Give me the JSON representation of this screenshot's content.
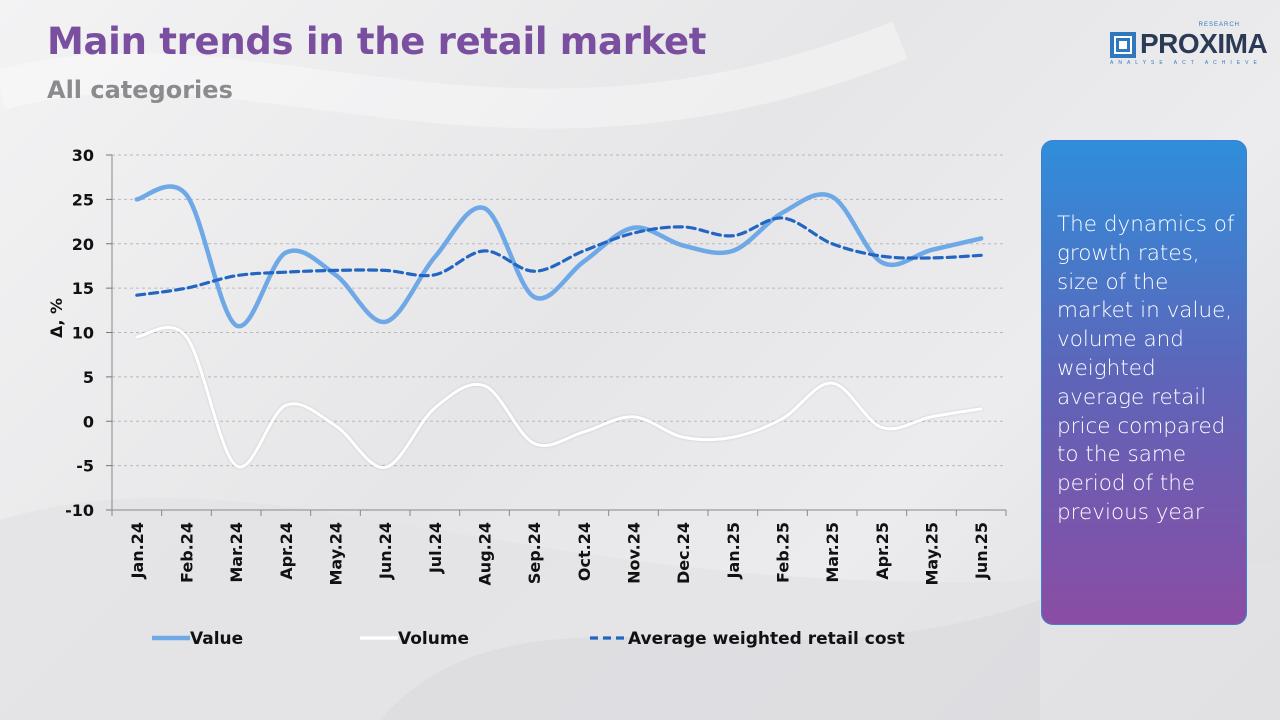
{
  "header": {
    "title": "Main trends in the retail market",
    "subtitle": "All categories"
  },
  "logo": {
    "word": "PROXIMA",
    "top_text": "RESEARCH",
    "tagline": "ANALYSE ACT ACHIEVE",
    "color": "#2e78c0"
  },
  "info_box": {
    "text": "The dynamics of growth rates, size of the market in value, volume and weighted average retail price compared to the same period of the previous year"
  },
  "colors": {
    "title": "#7b4fa0",
    "value_series": "#6fa8e6",
    "volume_series": "#ffffff",
    "avg_cost_series": "#2366c2"
  },
  "chart_data": {
    "type": "line",
    "ylabel": "Δ, %",
    "xlabel": "",
    "ylim": [
      -10,
      30
    ],
    "yticks": [
      -10,
      -5,
      0,
      5,
      10,
      15,
      20,
      25,
      30
    ],
    "grid": true,
    "legend_position": "bottom",
    "categories": [
      "Jan.24",
      "Feb.24",
      "Mar.24",
      "Apr.24",
      "May.24",
      "Jun.24",
      "Jul.24",
      "Aug.24",
      "Sep.24",
      "Oct.24",
      "Nov.24",
      "Dec.24",
      "Jan.25",
      "Feb.25",
      "Mar.25",
      "Apr.25",
      "May.25",
      "Jun.25"
    ],
    "series": [
      {
        "name": "Value",
        "style": "solid",
        "color": "#6fa8e6",
        "values": [
          25.0,
          25.5,
          10.8,
          19.0,
          16.5,
          11.2,
          18.5,
          24.0,
          14.0,
          18.0,
          21.8,
          19.8,
          19.2,
          23.5,
          25.3,
          17.9,
          19.3,
          20.6
        ]
      },
      {
        "name": "Volume",
        "style": "solid",
        "color": "#ffffff",
        "values": [
          9.5,
          9.5,
          -5.0,
          1.8,
          -0.5,
          -5.2,
          1.5,
          4.0,
          -2.5,
          -1.2,
          0.5,
          -1.8,
          -1.8,
          0.3,
          4.3,
          -0.7,
          0.5,
          1.4
        ]
      },
      {
        "name": "Average weighted retail cost",
        "style": "dashed",
        "color": "#2366c2",
        "values": [
          14.2,
          15.0,
          16.4,
          16.8,
          17.0,
          17.0,
          16.5,
          19.2,
          16.9,
          19.2,
          21.2,
          21.9,
          20.9,
          22.9,
          20.0,
          18.6,
          18.4,
          18.7
        ]
      }
    ]
  }
}
